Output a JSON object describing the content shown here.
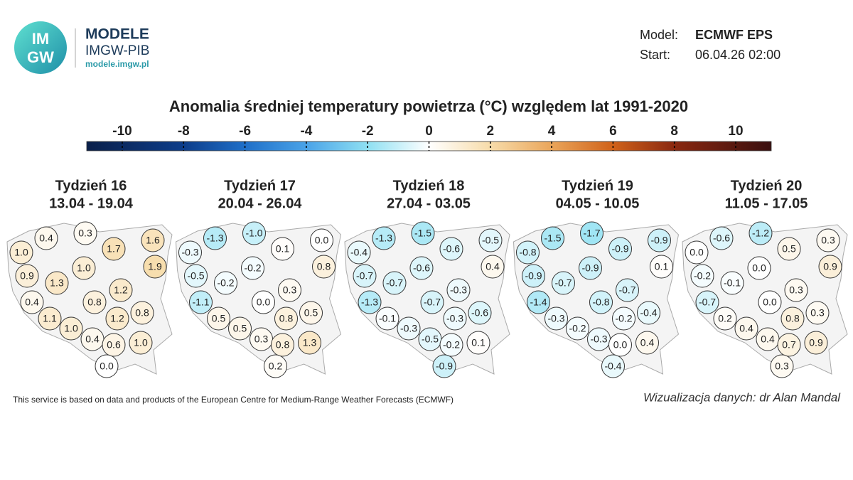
{
  "header": {
    "logo_top": "IM",
    "logo_bottom": "GW",
    "brand": "MODELE",
    "org": "IMGW-PIB",
    "url": "modele.imgw.pl"
  },
  "model": {
    "label": "Model:",
    "value": "ECMWF EPS"
  },
  "start": {
    "label": "Start:",
    "value": "06.04.26 02:00"
  },
  "title": "Anomalia średniej temperatury powietrza (°C) względem lat 1991-2020",
  "colorbar": {
    "ticks": [
      -10,
      -8,
      -6,
      -4,
      -2,
      0,
      2,
      4,
      6,
      8,
      10
    ],
    "lim": [
      -10,
      10
    ],
    "colors": [
      "#0a1f4a",
      "#0d3d8a",
      "#1f6fc8",
      "#4aa3e8",
      "#8fe0f2",
      "#ffffff",
      "#f7dcaa",
      "#eaa55a",
      "#d0621a",
      "#8a2810",
      "#3a0f0f"
    ]
  },
  "weeks": [
    {
      "title": "Tydzień 16",
      "dates": "13.04 - 19.04",
      "values": [
        "0.4",
        "0.3",
        "1.6",
        "1.0",
        "1.7",
        "1.9",
        "1.0",
        "0.9",
        "1.3",
        "1.2",
        "0.4",
        "0.8",
        "0.8",
        "1.1",
        "1.2",
        "1.0",
        "0.4",
        "0.6",
        "1.0",
        "0.0"
      ]
    },
    {
      "title": "Tydzień 17",
      "dates": "20.04 - 26.04",
      "values": [
        "-1.3",
        "-1.0",
        "0.0",
        "-0.3",
        "0.1",
        "0.8",
        "-0.2",
        "-0.5",
        "-0.2",
        "0.3",
        "-1.1",
        "0.0",
        "0.5",
        "0.5",
        "0.8",
        "0.5",
        "0.3",
        "0.8",
        "1.3",
        "0.2"
      ]
    },
    {
      "title": "Tydzień 18",
      "dates": "27.04 - 03.05",
      "values": [
        "-1.3",
        "-1.5",
        "-0.5",
        "-0.4",
        "-0.6",
        "0.4",
        "-0.6",
        "-0.7",
        "-0.7",
        "-0.3",
        "-1.3",
        "-0.7",
        "-0.6",
        "-0.1",
        "-0.3",
        "-0.3",
        "-0.5",
        "-0.2",
        "0.1",
        "-0.9"
      ]
    },
    {
      "title": "Tydzień 19",
      "dates": "04.05 - 10.05",
      "values": [
        "-1.5",
        "-1.7",
        "-0.9",
        "-0.8",
        "-0.9",
        "0.1",
        "-0.9",
        "-0.9",
        "-0.7",
        "-0.7",
        "-1.4",
        "-0.8",
        "-0.4",
        "-0.3",
        "-0.2",
        "-0.2",
        "-0.3",
        "0.0",
        "0.4",
        "-0.4"
      ]
    },
    {
      "title": "Tydzień 20",
      "dates": "11.05 - 17.05",
      "values": [
        "-0.6",
        "-1.2",
        "0.3",
        "0.0",
        "0.5",
        "0.9",
        "0.0",
        "-0.2",
        "-0.1",
        "0.3",
        "-0.7",
        "0.0",
        "0.3",
        "0.2",
        "0.8",
        "0.4",
        "0.4",
        "0.7",
        "0.9",
        "0.3"
      ]
    }
  ],
  "footer": {
    "source": "This service is based on data and products of the European Centre for Medium-Range Weather Forecasts (ECMWF)",
    "credit": "Wizualizacja danych: dr Alan Mandal"
  }
}
